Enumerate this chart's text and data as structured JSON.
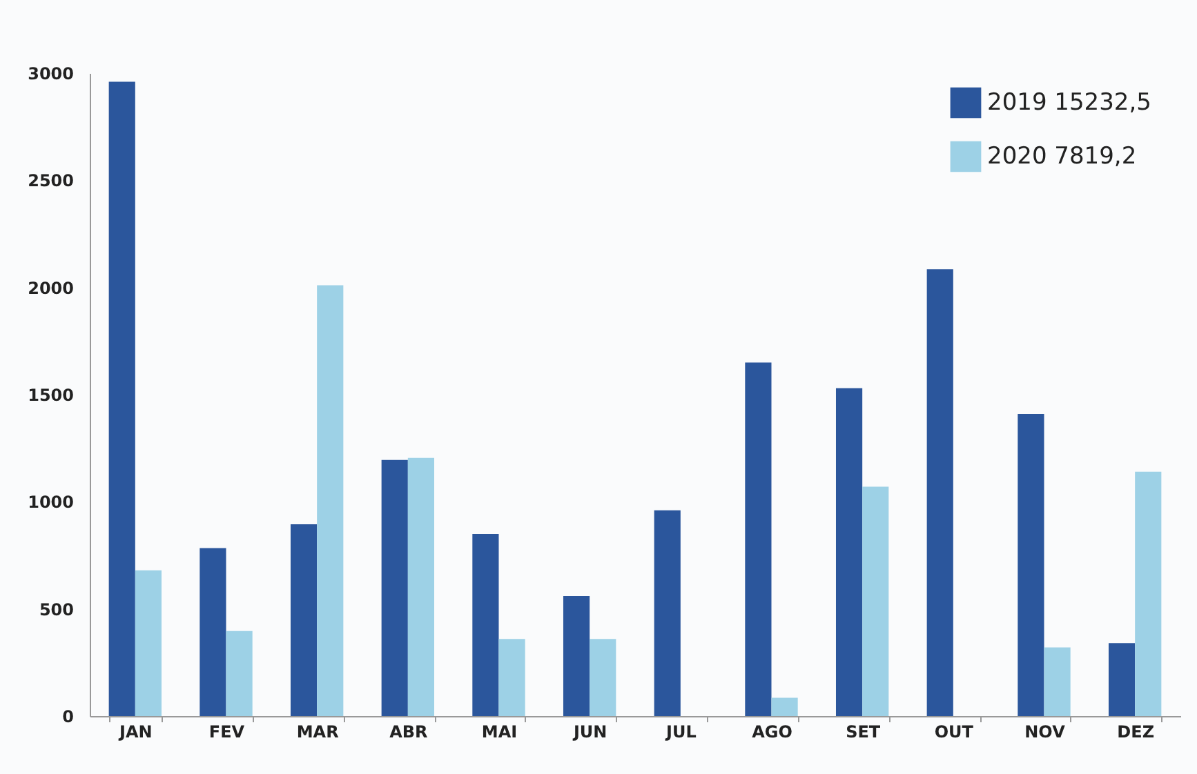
{
  "chart_data": {
    "type": "bar",
    "categories": [
      "JAN",
      "FEV",
      "MAR",
      "ABR",
      "MAI",
      "JUN",
      "JUL",
      "AGO",
      "SET",
      "OUT",
      "NOV",
      "DEZ"
    ],
    "series": [
      {
        "name": "2019   15232,5",
        "color": "#2b569c",
        "values": [
          2960,
          784,
          895,
          1195,
          850,
          560,
          960,
          1650,
          1530,
          2085,
          1410,
          340
        ]
      },
      {
        "name": "2020   7819,2",
        "color": "#9dd1e6",
        "values": [
          680,
          397,
          2010,
          1205,
          360,
          360,
          null,
          85,
          1070,
          null,
          320,
          1140
        ]
      }
    ],
    "ylim": [
      0,
      3000
    ],
    "yticks": [
      0,
      500,
      1000,
      1500,
      2000,
      2500,
      3000
    ],
    "grid": false,
    "legend": "top right"
  }
}
